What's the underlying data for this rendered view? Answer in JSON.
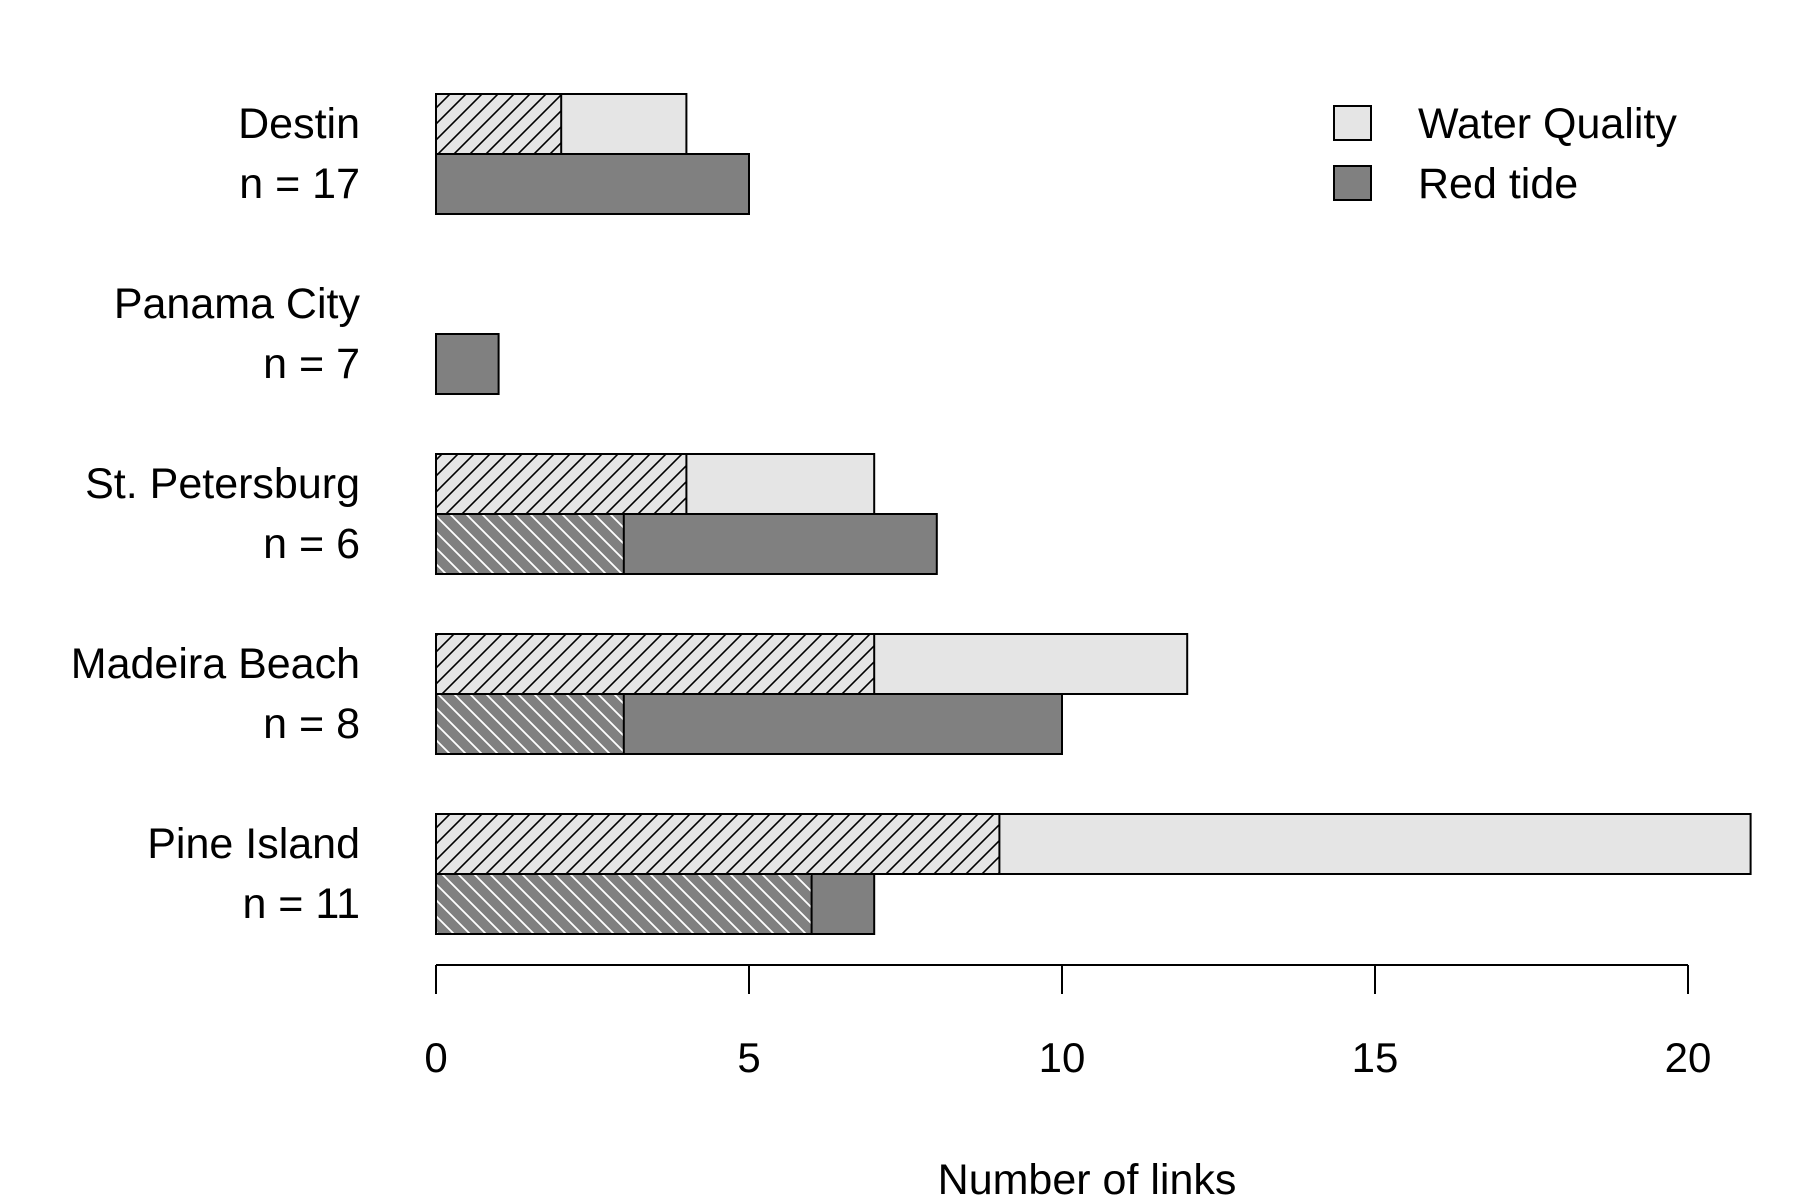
{
  "chart_data": {
    "type": "bar",
    "orientation": "horizontal",
    "title": "",
    "xlabel": "Number of links",
    "ylabel": "",
    "xlim": [
      0,
      21
    ],
    "xticks": [
      0,
      5,
      10,
      15,
      20
    ],
    "grid": false,
    "legend_position": "top-right",
    "categories": [
      {
        "name": "Destin",
        "n_label": "n =  17"
      },
      {
        "name": "Panama City",
        "n_label": "n =  7"
      },
      {
        "name": "St. Petersburg",
        "n_label": "n =  6"
      },
      {
        "name": "Madeira Beach",
        "n_label": "n =  8"
      },
      {
        "name": "Pine Island",
        "n_label": "n =  11"
      }
    ],
    "series": [
      {
        "name": "Water Quality",
        "color": "#e5e5e5",
        "values": [
          4,
          0,
          7,
          12,
          21
        ],
        "hatched_values": [
          2,
          0,
          4,
          7,
          9
        ],
        "hatch": "forward"
      },
      {
        "name": "Red tide",
        "color": "#808080",
        "values": [
          5,
          1,
          8,
          10,
          7
        ],
        "hatched_values": [
          0,
          0,
          3,
          3,
          6
        ],
        "hatch": "backward"
      }
    ]
  }
}
